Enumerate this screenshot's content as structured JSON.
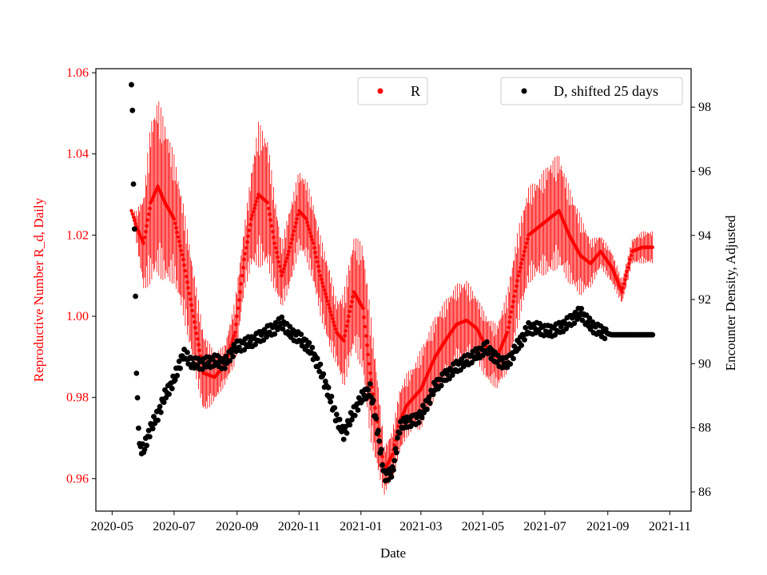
{
  "chart_data": {
    "type": "scatter",
    "title": "",
    "xlabel": "Date",
    "ylabel_left": "Reproductive Number R_d, Daily",
    "ylabel_right": "Encounter Density, Adjusted",
    "x_tick_labels": [
      "2020-05",
      "2020-07",
      "2020-09",
      "2020-11",
      "2021-01",
      "2021-03",
      "2021-05",
      "2021-07",
      "2021-09",
      "2021-11"
    ],
    "x_range": [
      "2020-04-15",
      "2021-11-22"
    ],
    "y_left_ticks": [
      "0.96",
      "0.98",
      "1.00",
      "1.02",
      "1.04",
      "1.06"
    ],
    "y_left_range": [
      0.952,
      1.061
    ],
    "y_right_ticks": [
      "86",
      "88",
      "90",
      "92",
      "94",
      "96",
      "98"
    ],
    "y_right_range": [
      85.4,
      99.2
    ],
    "grid": false,
    "colors": {
      "R": "#ff0000",
      "D": "#000000",
      "left_axis_text": "#ff0000"
    },
    "legends": [
      {
        "label": "R",
        "color": "#ff0000",
        "placement": "upper-center"
      },
      {
        "label": "D, shifted 25 days",
        "color": "#000000",
        "placement": "upper-right"
      }
    ],
    "series": [
      {
        "name": "R",
        "axis": "left",
        "marker": "dot-with-errorbars",
        "x": [
          "2020-05-20",
          "2020-05-25",
          "2020-06-01",
          "2020-06-08",
          "2020-06-15",
          "2020-06-22",
          "2020-07-01",
          "2020-07-10",
          "2020-07-20",
          "2020-07-30",
          "2020-08-10",
          "2020-08-20",
          "2020-08-30",
          "2020-09-08",
          "2020-09-15",
          "2020-09-22",
          "2020-10-01",
          "2020-10-08",
          "2020-10-15",
          "2020-10-22",
          "2020-11-01",
          "2020-11-08",
          "2020-11-15",
          "2020-11-22",
          "2020-12-01",
          "2020-12-08",
          "2020-12-15",
          "2020-12-25",
          "2021-01-03",
          "2021-01-10",
          "2021-01-17",
          "2021-01-24",
          "2021-02-01",
          "2021-02-08",
          "2021-02-15",
          "2021-02-22",
          "2021-03-01",
          "2021-03-08",
          "2021-03-15",
          "2021-03-25",
          "2021-04-05",
          "2021-04-15",
          "2021-04-25",
          "2021-05-05",
          "2021-05-15",
          "2021-05-25",
          "2021-06-05",
          "2021-06-15",
          "2021-06-25",
          "2021-07-05",
          "2021-07-15",
          "2021-07-25",
          "2021-08-05",
          "2021-08-15",
          "2021-08-25",
          "2021-09-05",
          "2021-09-15",
          "2021-09-25",
          "2021-10-05",
          "2021-10-15"
        ],
        "y": [
          1.026,
          1.022,
          1.018,
          1.028,
          1.032,
          1.028,
          1.024,
          1.014,
          1.0,
          0.986,
          0.985,
          0.988,
          0.996,
          1.014,
          1.024,
          1.03,
          1.028,
          1.018,
          1.01,
          1.016,
          1.026,
          1.024,
          1.018,
          1.01,
          1.002,
          0.996,
          0.994,
          1.006,
          1.002,
          0.986,
          0.974,
          0.962,
          0.966,
          0.974,
          0.978,
          0.98,
          0.982,
          0.986,
          0.99,
          0.994,
          0.998,
          0.999,
          0.997,
          0.992,
          0.99,
          0.996,
          1.01,
          1.02,
          1.022,
          1.024,
          1.026,
          1.02,
          1.015,
          1.013,
          1.016,
          1.012,
          1.006,
          1.016,
          1.017,
          1.017
        ],
        "err": [
          0.0,
          0.004,
          0.012,
          0.02,
          0.022,
          0.02,
          0.016,
          0.014,
          0.012,
          0.01,
          0.006,
          0.005,
          0.008,
          0.008,
          0.012,
          0.018,
          0.016,
          0.012,
          0.008,
          0.01,
          0.01,
          0.01,
          0.01,
          0.01,
          0.01,
          0.008,
          0.012,
          0.014,
          0.016,
          0.016,
          0.012,
          0.006,
          0.006,
          0.008,
          0.008,
          0.008,
          0.01,
          0.01,
          0.01,
          0.01,
          0.01,
          0.01,
          0.008,
          0.008,
          0.008,
          0.01,
          0.012,
          0.012,
          0.012,
          0.014,
          0.014,
          0.012,
          0.01,
          0.006,
          0.004,
          0.004,
          0.003,
          0.003,
          0.004,
          0.004
        ]
      },
      {
        "name": "D, shifted 25 days",
        "axis": "right",
        "marker": "dot",
        "x": [
          "2020-05-20",
          "2020-05-21",
          "2020-05-22",
          "2020-05-23",
          "2020-05-24",
          "2020-05-25",
          "2020-05-28",
          "2020-06-01",
          "2020-06-08",
          "2020-06-15",
          "2020-06-22",
          "2020-07-01",
          "2020-07-10",
          "2020-07-20",
          "2020-07-30",
          "2020-08-10",
          "2020-08-20",
          "2020-08-30",
          "2020-09-08",
          "2020-09-15",
          "2020-09-22",
          "2020-10-01",
          "2020-10-08",
          "2020-10-15",
          "2020-10-22",
          "2020-11-01",
          "2020-11-08",
          "2020-11-15",
          "2020-11-22",
          "2020-12-01",
          "2020-12-08",
          "2020-12-15",
          "2020-12-25",
          "2021-01-03",
          "2021-01-10",
          "2021-01-17",
          "2021-01-24",
          "2021-02-01",
          "2021-02-08",
          "2021-02-15",
          "2021-02-22",
          "2021-03-01",
          "2021-03-08",
          "2021-03-15",
          "2021-03-25",
          "2021-04-05",
          "2021-04-15",
          "2021-04-25",
          "2021-05-05",
          "2021-05-15",
          "2021-05-25",
          "2021-06-05",
          "2021-06-15",
          "2021-06-25",
          "2021-07-05",
          "2021-07-15",
          "2021-07-25",
          "2021-08-05",
          "2021-08-15",
          "2021-08-25",
          "2021-09-05",
          "2021-09-15",
          "2021-09-25",
          "2021-10-05",
          "2021-10-15"
        ],
        "y": [
          98.7,
          97.9,
          95.6,
          94.2,
          92.1,
          89.7,
          87.4,
          87.3,
          88.0,
          88.4,
          89.0,
          89.5,
          90.3,
          90.0,
          90.0,
          90.1,
          90.0,
          90.5,
          90.6,
          90.7,
          90.8,
          91.0,
          91.1,
          91.3,
          91.0,
          90.8,
          90.6,
          90.3,
          89.8,
          89.0,
          88.3,
          87.8,
          88.5,
          89.0,
          89.2,
          88.0,
          86.5,
          86.6,
          88.0,
          88.2,
          88.2,
          88.4,
          88.8,
          89.3,
          89.6,
          89.9,
          90.1,
          90.3,
          90.5,
          90.1,
          90.0,
          90.6,
          91.1,
          91.1,
          91.0,
          91.1,
          91.3,
          91.6,
          91.2,
          91.0,
          90.9,
          90.9,
          90.9,
          90.9,
          90.9
        ]
      }
    ]
  }
}
